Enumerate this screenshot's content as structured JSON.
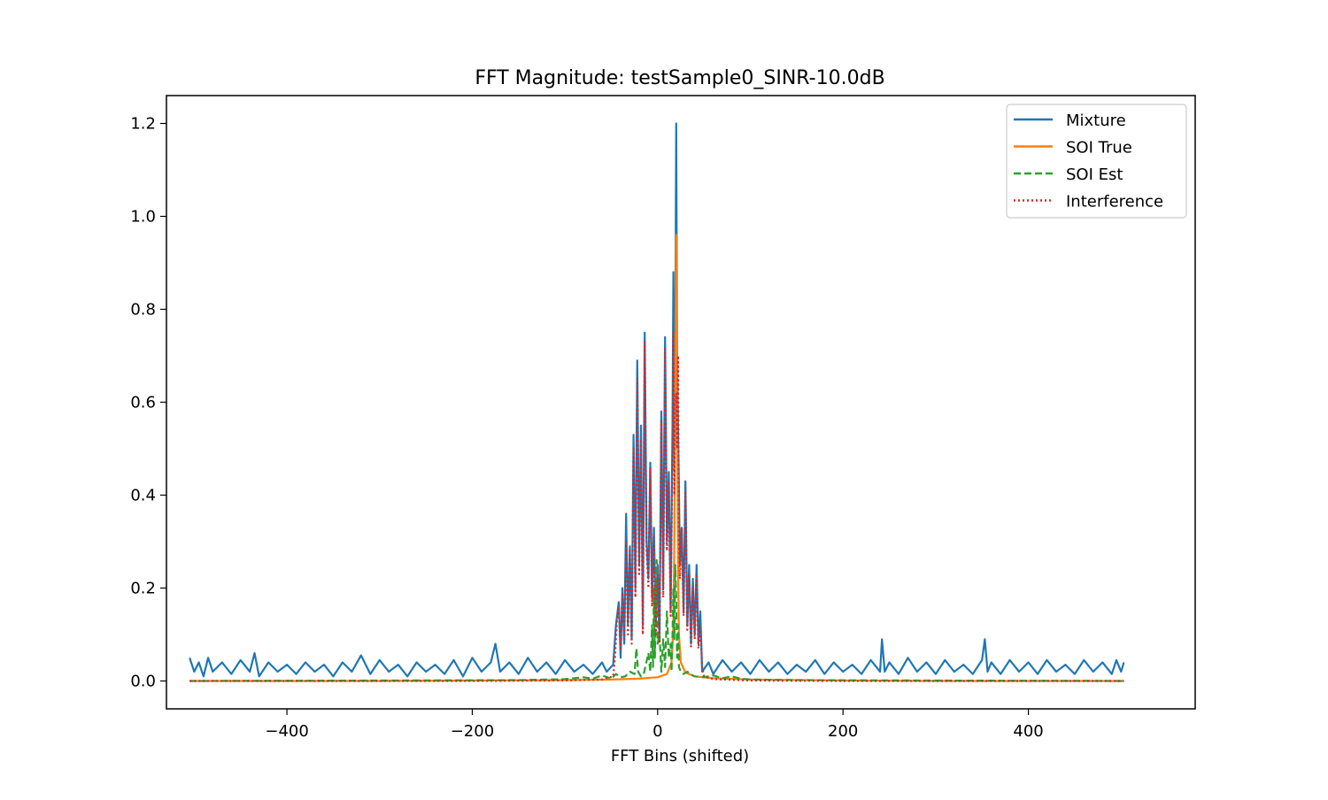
{
  "chart_data": {
    "type": "line",
    "title": "FFT Magnitude: testSample0_SINR-10.0dB",
    "xlabel": "FFT Bins (shifted)",
    "ylabel": "",
    "xlim": [
      -530,
      580
    ],
    "ylim": [
      -0.06,
      1.26
    ],
    "x_ticks": [
      -400,
      -200,
      0,
      200,
      400
    ],
    "x_tick_labels": [
      "−400",
      "−200",
      "0",
      "200",
      "400"
    ],
    "y_ticks": [
      0.0,
      0.2,
      0.4,
      0.6,
      0.8,
      1.0,
      1.2
    ],
    "y_tick_labels": [
      "0.0",
      "0.2",
      "0.4",
      "0.6",
      "0.8",
      "1.0",
      "1.2"
    ],
    "grid": false,
    "legend_position": "top-right",
    "series": [
      {
        "name": "Mixture",
        "color": "#1f77b4",
        "style": "solid",
        "points": [
          [
            -505,
            0.05
          ],
          [
            -500,
            0.02
          ],
          [
            -495,
            0.04
          ],
          [
            -490,
            0.01
          ],
          [
            -485,
            0.05
          ],
          [
            -480,
            0.02
          ],
          [
            -470,
            0.04
          ],
          [
            -460,
            0.015
          ],
          [
            -450,
            0.045
          ],
          [
            -440,
            0.02
          ],
          [
            -435,
            0.06
          ],
          [
            -430,
            0.01
          ],
          [
            -420,
            0.04
          ],
          [
            -410,
            0.02
          ],
          [
            -400,
            0.035
          ],
          [
            -390,
            0.015
          ],
          [
            -380,
            0.04
          ],
          [
            -370,
            0.02
          ],
          [
            -360,
            0.035
          ],
          [
            -350,
            0.01
          ],
          [
            -340,
            0.04
          ],
          [
            -330,
            0.02
          ],
          [
            -320,
            0.055
          ],
          [
            -310,
            0.015
          ],
          [
            -300,
            0.045
          ],
          [
            -290,
            0.02
          ],
          [
            -280,
            0.035
          ],
          [
            -270,
            0.01
          ],
          [
            -260,
            0.04
          ],
          [
            -250,
            0.02
          ],
          [
            -240,
            0.035
          ],
          [
            -230,
            0.015
          ],
          [
            -220,
            0.045
          ],
          [
            -210,
            0.01
          ],
          [
            -200,
            0.05
          ],
          [
            -190,
            0.02
          ],
          [
            -180,
            0.04
          ],
          [
            -175,
            0.08
          ],
          [
            -170,
            0.02
          ],
          [
            -160,
            0.04
          ],
          [
            -150,
            0.015
          ],
          [
            -140,
            0.05
          ],
          [
            -130,
            0.02
          ],
          [
            -120,
            0.04
          ],
          [
            -110,
            0.015
          ],
          [
            -100,
            0.045
          ],
          [
            -90,
            0.02
          ],
          [
            -80,
            0.035
          ],
          [
            -70,
            0.015
          ],
          [
            -60,
            0.04
          ],
          [
            -55,
            0.02
          ],
          [
            -48,
            0.035
          ],
          [
            -45,
            0.12
          ],
          [
            -42,
            0.17
          ],
          [
            -40,
            0.05
          ],
          [
            -38,
            0.2
          ],
          [
            -36,
            0.08
          ],
          [
            -34,
            0.36
          ],
          [
            -32,
            0.12
          ],
          [
            -30,
            0.29
          ],
          [
            -28,
            0.09
          ],
          [
            -26,
            0.53
          ],
          [
            -24,
            0.2
          ],
          [
            -22,
            0.69
          ],
          [
            -20,
            0.25
          ],
          [
            -18,
            0.55
          ],
          [
            -16,
            0.12
          ],
          [
            -14,
            0.75
          ],
          [
            -12,
            0.3
          ],
          [
            -10,
            0.22
          ],
          [
            -8,
            0.47
          ],
          [
            -6,
            0.18
          ],
          [
            -4,
            0.33
          ],
          [
            -2,
            0.12
          ],
          [
            0,
            0.25
          ],
          [
            2,
            0.09
          ],
          [
            4,
            0.58
          ],
          [
            6,
            0.2
          ],
          [
            8,
            0.74
          ],
          [
            10,
            0.3
          ],
          [
            12,
            0.45
          ],
          [
            14,
            0.15
          ],
          [
            16,
            0.55
          ],
          [
            17,
            0.88
          ],
          [
            18,
            0.45
          ],
          [
            19,
            0.72
          ],
          [
            20,
            1.2
          ],
          [
            21,
            0.7
          ],
          [
            22,
            0.55
          ],
          [
            24,
            0.25
          ],
          [
            26,
            0.33
          ],
          [
            28,
            0.15
          ],
          [
            30,
            0.43
          ],
          [
            32,
            0.12
          ],
          [
            34,
            0.25
          ],
          [
            36,
            0.08
          ],
          [
            38,
            0.22
          ],
          [
            40,
            0.1
          ],
          [
            42,
            0.25
          ],
          [
            44,
            0.08
          ],
          [
            46,
            0.15
          ],
          [
            48,
            0.02
          ],
          [
            55,
            0.04
          ],
          [
            60,
            0.015
          ],
          [
            70,
            0.045
          ],
          [
            80,
            0.02
          ],
          [
            90,
            0.04
          ],
          [
            100,
            0.015
          ],
          [
            110,
            0.045
          ],
          [
            120,
            0.02
          ],
          [
            130,
            0.04
          ],
          [
            140,
            0.015
          ],
          [
            150,
            0.035
          ],
          [
            160,
            0.02
          ],
          [
            170,
            0.045
          ],
          [
            180,
            0.015
          ],
          [
            190,
            0.04
          ],
          [
            200,
            0.02
          ],
          [
            210,
            0.035
          ],
          [
            220,
            0.015
          ],
          [
            230,
            0.045
          ],
          [
            240,
            0.02
          ],
          [
            242,
            0.09
          ],
          [
            245,
            0.02
          ],
          [
            250,
            0.04
          ],
          [
            260,
            0.015
          ],
          [
            270,
            0.05
          ],
          [
            280,
            0.02
          ],
          [
            290,
            0.04
          ],
          [
            300,
            0.015
          ],
          [
            310,
            0.045
          ],
          [
            320,
            0.02
          ],
          [
            330,
            0.035
          ],
          [
            340,
            0.015
          ],
          [
            350,
            0.045
          ],
          [
            353,
            0.09
          ],
          [
            356,
            0.02
          ],
          [
            360,
            0.04
          ],
          [
            370,
            0.015
          ],
          [
            380,
            0.045
          ],
          [
            390,
            0.02
          ],
          [
            400,
            0.04
          ],
          [
            410,
            0.015
          ],
          [
            420,
            0.045
          ],
          [
            430,
            0.02
          ],
          [
            440,
            0.035
          ],
          [
            450,
            0.015
          ],
          [
            460,
            0.045
          ],
          [
            470,
            0.02
          ],
          [
            480,
            0.04
          ],
          [
            490,
            0.015
          ],
          [
            495,
            0.045
          ],
          [
            500,
            0.02
          ],
          [
            503,
            0.04
          ]
        ]
      },
      {
        "name": "SOI True",
        "color": "#ff7f0e",
        "style": "solid",
        "points": [
          [
            -505,
            0.0
          ],
          [
            -300,
            0.0
          ],
          [
            -200,
            0.001
          ],
          [
            -100,
            0.002
          ],
          [
            -50,
            0.003
          ],
          [
            -20,
            0.005
          ],
          [
            0,
            0.008
          ],
          [
            10,
            0.015
          ],
          [
            15,
            0.04
          ],
          [
            17,
            0.12
          ],
          [
            18,
            0.3
          ],
          [
            19,
            0.65
          ],
          [
            20,
            0.96
          ],
          [
            21,
            0.6
          ],
          [
            22,
            0.25
          ],
          [
            23,
            0.1
          ],
          [
            25,
            0.04
          ],
          [
            30,
            0.018
          ],
          [
            40,
            0.01
          ],
          [
            60,
            0.006
          ],
          [
            100,
            0.003
          ],
          [
            200,
            0.001
          ],
          [
            300,
            0.0
          ],
          [
            503,
            0.0
          ]
        ]
      },
      {
        "name": "SOI Est",
        "color": "#2ca02c",
        "style": "dashed",
        "points": [
          [
            -505,
            0.0
          ],
          [
            -300,
            0.001
          ],
          [
            -150,
            0.002
          ],
          [
            -100,
            0.004
          ],
          [
            -80,
            0.008
          ],
          [
            -70,
            0.005
          ],
          [
            -60,
            0.012
          ],
          [
            -50,
            0.005
          ],
          [
            -45,
            0.015
          ],
          [
            -40,
            0.008
          ],
          [
            -35,
            0.01
          ],
          [
            -30,
            0.02
          ],
          [
            -25,
            0.015
          ],
          [
            -23,
            0.07
          ],
          [
            -21,
            0.02
          ],
          [
            -18,
            0.01
          ],
          [
            -15,
            0.015
          ],
          [
            -10,
            0.06
          ],
          [
            -8,
            0.02
          ],
          [
            -6,
            0.12
          ],
          [
            -5,
            0.03
          ],
          [
            -4,
            0.2
          ],
          [
            -3,
            0.05
          ],
          [
            -1,
            0.26
          ],
          [
            0,
            0.08
          ],
          [
            2,
            0.1
          ],
          [
            4,
            0.02
          ],
          [
            6,
            0.09
          ],
          [
            8,
            0.03
          ],
          [
            10,
            0.15
          ],
          [
            12,
            0.05
          ],
          [
            14,
            0.08
          ],
          [
            15,
            0.02
          ],
          [
            16,
            0.1
          ],
          [
            17,
            0.2
          ],
          [
            18,
            0.09
          ],
          [
            19,
            0.25
          ],
          [
            20,
            0.18
          ],
          [
            21,
            0.05
          ],
          [
            22,
            0.12
          ],
          [
            23,
            0.03
          ],
          [
            25,
            0.02
          ],
          [
            28,
            0.015
          ],
          [
            32,
            0.02
          ],
          [
            35,
            0.015
          ],
          [
            40,
            0.01
          ],
          [
            50,
            0.008
          ],
          [
            60,
            0.012
          ],
          [
            70,
            0.006
          ],
          [
            80,
            0.01
          ],
          [
            90,
            0.005
          ],
          [
            100,
            0.003
          ],
          [
            150,
            0.002
          ],
          [
            300,
            0.001
          ],
          [
            503,
            0.0
          ]
        ]
      },
      {
        "name": "Interference",
        "color": "#d62728",
        "style": "dotted",
        "points": [
          [
            -505,
            0.0
          ],
          [
            -200,
            0.0
          ],
          [
            -100,
            0.001
          ],
          [
            -60,
            0.003
          ],
          [
            -48,
            0.01
          ],
          [
            -46,
            0.05
          ],
          [
            -44,
            0.13
          ],
          [
            -42,
            0.16
          ],
          [
            -40,
            0.07
          ],
          [
            -38,
            0.19
          ],
          [
            -36,
            0.09
          ],
          [
            -34,
            0.3
          ],
          [
            -32,
            0.1
          ],
          [
            -30,
            0.28
          ],
          [
            -28,
            0.08
          ],
          [
            -26,
            0.5
          ],
          [
            -24,
            0.18
          ],
          [
            -22,
            0.65
          ],
          [
            -20,
            0.23
          ],
          [
            -18,
            0.52
          ],
          [
            -16,
            0.1
          ],
          [
            -14,
            0.73
          ],
          [
            -12,
            0.28
          ],
          [
            -10,
            0.2
          ],
          [
            -8,
            0.46
          ],
          [
            -6,
            0.16
          ],
          [
            -4,
            0.31
          ],
          [
            -2,
            0.1
          ],
          [
            0,
            0.23
          ],
          [
            2,
            0.08
          ],
          [
            4,
            0.56
          ],
          [
            6,
            0.18
          ],
          [
            8,
            0.72
          ],
          [
            10,
            0.28
          ],
          [
            12,
            0.43
          ],
          [
            14,
            0.14
          ],
          [
            16,
            0.5
          ],
          [
            17,
            0.75
          ],
          [
            18,
            0.4
          ],
          [
            19,
            0.6
          ],
          [
            20,
            0.62
          ],
          [
            21,
            0.5
          ],
          [
            22,
            0.7
          ],
          [
            23,
            0.3
          ],
          [
            24,
            0.22
          ],
          [
            26,
            0.33
          ],
          [
            28,
            0.14
          ],
          [
            30,
            0.41
          ],
          [
            32,
            0.11
          ],
          [
            34,
            0.23
          ],
          [
            36,
            0.07
          ],
          [
            38,
            0.2
          ],
          [
            40,
            0.09
          ],
          [
            42,
            0.23
          ],
          [
            44,
            0.07
          ],
          [
            46,
            0.12
          ],
          [
            48,
            0.03
          ],
          [
            50,
            0.01
          ],
          [
            60,
            0.004
          ],
          [
            100,
            0.001
          ],
          [
            200,
            0.0
          ],
          [
            503,
            0.0
          ]
        ]
      }
    ]
  }
}
